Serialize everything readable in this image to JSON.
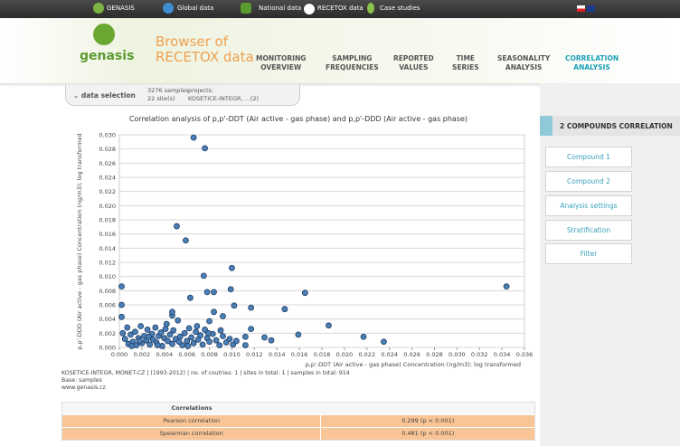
{
  "topnav": [
    "GENASIS",
    "Global data",
    "National data",
    "RECETOX data",
    "Case studies"
  ],
  "header": {
    "logo": "genasis",
    "title_line1": "Browser of",
    "title_line2": "RECETOX data"
  },
  "tabs": [
    [
      "MONITORING",
      "OVERVIEW"
    ],
    [
      "SAMPLING",
      "FREQUENCIES"
    ],
    [
      "REPORTED",
      "VALUES"
    ],
    [
      "TIME",
      "SERIES"
    ],
    [
      "SEASONALITY",
      "ANALYSIS"
    ],
    [
      "CORRELATION",
      "ANALYSIS"
    ]
  ],
  "data_selection": {
    "label": "data selection",
    "samples": "3276 samples",
    "sites": "22 site(s)",
    "projects_label": "projects:",
    "projects": "KOSETICE-INTEGR, ...(2)"
  },
  "sidebar": {
    "title": "2 COMPOUNDS CORRELATION",
    "buttons": [
      "Compound 1",
      "Compound 2",
      "Analysis settings",
      "Stratification",
      "Filter"
    ]
  },
  "chart_data": {
    "type": "scatter",
    "title": "Correlation analysis of p,p'-DDT (Air active - gas phase) and p,p'-DDD (Air active - gas phase)",
    "x_label": "p,p'-DDT (Air active - gas phase) Concentration (ng/m3); log transformed",
    "y_label": "p,p'-DDD (Air active - gas phase) Concentration (ng/m3); log transformed",
    "color": "#4a7fb5",
    "grid": true,
    "xlim": [
      0,
      0.036
    ],
    "ylim": [
      0,
      0.03
    ],
    "xticks": [
      {
        "value": 0,
        "label": "0.000"
      },
      {
        "value": 0.002,
        "label": "0.002"
      },
      {
        "value": 0.004,
        "label": "0.004"
      },
      {
        "value": 0.006,
        "label": "0.006"
      },
      {
        "value": 0.008,
        "label": "0.008"
      },
      {
        "value": 0.01,
        "label": "0.010"
      },
      {
        "value": 0.012,
        "label": "0.012"
      },
      {
        "value": 0.014,
        "label": "0.014"
      },
      {
        "value": 0.016,
        "label": "0.016"
      },
      {
        "value": 0.018,
        "label": "0.018"
      },
      {
        "value": 0.02,
        "label": "0.020"
      },
      {
        "value": 0.022,
        "label": "0.022"
      },
      {
        "value": 0.024,
        "label": "0.024"
      },
      {
        "value": 0.026,
        "label": "0.026"
      },
      {
        "value": 0.028,
        "label": "0.028"
      },
      {
        "value": 0.03,
        "label": "0.030"
      },
      {
        "value": 0.032,
        "label": "0.032"
      },
      {
        "value": 0.034,
        "label": "0.034"
      },
      {
        "value": 0.036,
        "label": "0.036"
      }
    ],
    "yticks": [
      {
        "value": 0,
        "label": "0.000"
      },
      {
        "value": 0.002,
        "label": "0.002"
      },
      {
        "value": 0.004,
        "label": "0.004"
      },
      {
        "value": 0.006,
        "label": "0.006"
      },
      {
        "value": 0.008,
        "label": "0.008"
      },
      {
        "value": 0.01,
        "label": "0.010"
      },
      {
        "value": 0.012,
        "label": "0.012"
      },
      {
        "value": 0.014,
        "label": "0.014"
      },
      {
        "value": 0.016,
        "label": "0.016"
      },
      {
        "value": 0.018,
        "label": "0.018"
      },
      {
        "value": 0.02,
        "label": "0.020"
      },
      {
        "value": 0.022,
        "label": "0.022"
      },
      {
        "value": 0.024,
        "label": "0.024"
      },
      {
        "value": 0.026,
        "label": "0.026"
      },
      {
        "value": 0.028,
        "label": "0.028"
      },
      {
        "value": 0.03,
        "label": "0.030"
      }
    ],
    "x": [
      0.0066,
      0.0076,
      0.0051,
      0.0059,
      0.0075,
      0.01,
      0.0078,
      0.0084,
      0.0063,
      0.0099,
      0.0165,
      0.0344,
      0.0002,
      0.0002,
      0.0002,
      0.0047,
      0.0047,
      0.0117,
      0.0147,
      0.0102,
      0.0092,
      0.0084,
      0.008,
      0.0186,
      0.0217,
      0.0235,
      0.0112,
      0.0117,
      0.0135,
      0.0129,
      0.0159,
      0.0005,
      0.0008,
      0.001,
      0.0012,
      0.0014,
      0.0015,
      0.0017,
      0.0019,
      0.002,
      0.0022,
      0.0024,
      0.0025,
      0.0027,
      0.0029,
      0.003,
      0.0032,
      0.0033,
      0.0035,
      0.0037,
      0.0038,
      0.004,
      0.0042,
      0.0043,
      0.0045,
      0.0047,
      0.0048,
      0.005,
      0.0052,
      0.0054,
      0.0056,
      0.0058,
      0.006,
      0.0062,
      0.0064,
      0.0066,
      0.0068,
      0.007,
      0.0072,
      0.0074,
      0.0076,
      0.0078,
      0.008,
      0.0083,
      0.0086,
      0.0089,
      0.0092,
      0.0095,
      0.0098,
      0.0101,
      0.0104,
      0.0003,
      0.0007,
      0.0011,
      0.0018,
      0.0026,
      0.0034,
      0.0041,
      0.0053,
      0.0061,
      0.0069,
      0.0079,
      0.009,
      0.0112
    ],
    "y": [
      0.0296,
      0.0281,
      0.0171,
      0.0151,
      0.0101,
      0.0112,
      0.0078,
      0.0078,
      0.007,
      0.0082,
      0.0077,
      0.0086,
      0.0086,
      0.006,
      0.0043,
      0.0045,
      0.005,
      0.0056,
      0.0054,
      0.0059,
      0.0044,
      0.005,
      0.0037,
      0.0031,
      0.0015,
      0.0008,
      0.0015,
      0.0026,
      0.001,
      0.0014,
      0.0018,
      0.0012,
      0.0005,
      0.0018,
      0.0008,
      0.0022,
      0.0003,
      0.0013,
      0.003,
      0.0006,
      0.0016,
      0.001,
      0.0025,
      0.0004,
      0.0019,
      0.0011,
      0.0028,
      0.0007,
      0.0016,
      0.0021,
      0.0002,
      0.0013,
      0.0033,
      0.0009,
      0.0018,
      0.0005,
      0.0024,
      0.0012,
      0.0038,
      0.0015,
      0.0003,
      0.002,
      0.0009,
      0.0027,
      0.0014,
      0.0006,
      0.0022,
      0.0011,
      0.0017,
      0.0004,
      0.0025,
      0.0013,
      0.0008,
      0.0019,
      0.001,
      0.0003,
      0.0016,
      0.0007,
      0.0012,
      0.0004,
      0.0009,
      0.002,
      0.0028,
      0.0002,
      0.0009,
      0.0015,
      0.0003,
      0.0026,
      0.0008,
      0.0002,
      0.003,
      0.002,
      0.0024,
      0.0003
    ]
  },
  "footer": {
    "lines": [
      "KOSETICE-INTEGR, MONET-CZ | (1993-2012) | no. of coutries: 1 | sites in total: 1 | samples in total: 914",
      "Base: samples",
      "www.genasis.cz"
    ]
  },
  "table": {
    "header": "Correlations",
    "rows": [
      [
        "Pearson correlation",
        "0.299 (p < 0.001)"
      ],
      [
        "Spearman correlation",
        "0.481 (p < 0.001)"
      ]
    ]
  }
}
